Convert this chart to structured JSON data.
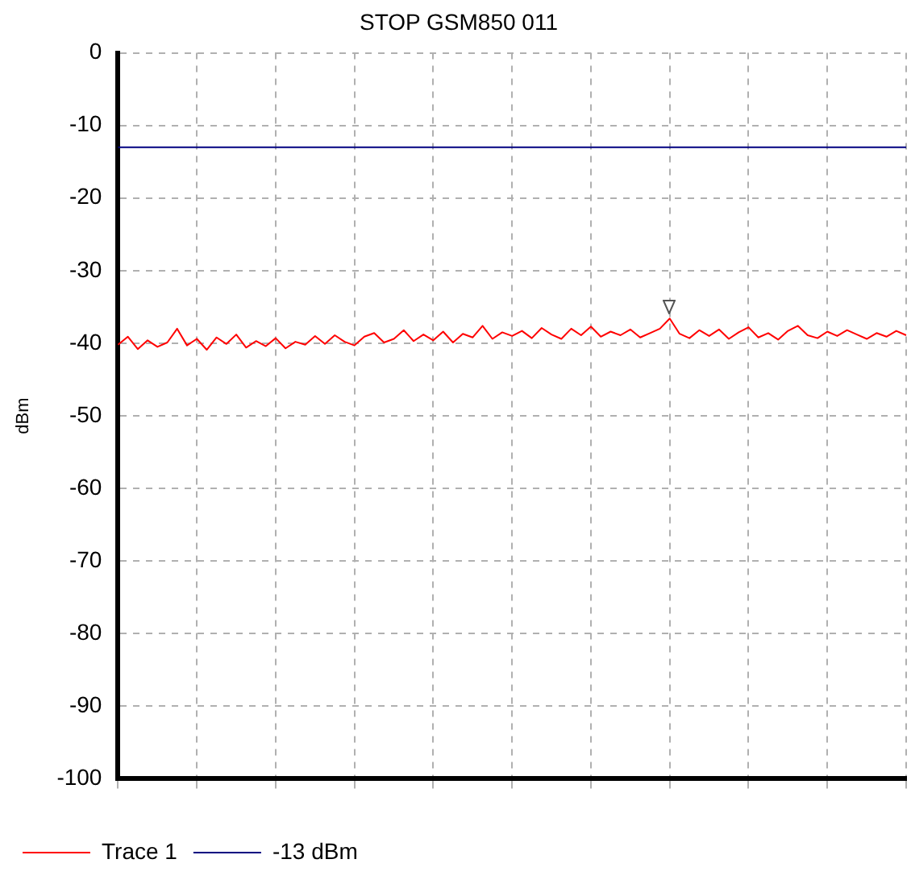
{
  "chart_data": {
    "type": "line",
    "title": "STOP GSM850 011",
    "ylabel": "dBm",
    "categories": [
      null,
      null,
      null,
      null,
      null,
      null,
      null,
      null,
      null,
      null,
      null,
      null,
      null,
      null,
      null,
      null,
      null,
      null,
      null,
      null,
      null,
      null,
      null,
      null,
      null,
      null,
      null,
      null,
      null,
      null,
      null,
      null,
      null,
      null,
      null,
      null,
      null,
      null,
      null,
      null,
      null,
      null,
      null,
      null,
      null,
      null,
      null,
      null,
      null,
      null,
      null,
      null,
      null,
      null,
      null,
      null,
      null,
      null,
      null,
      null,
      null,
      null,
      null,
      null,
      null,
      null,
      null,
      null,
      null,
      null,
      null,
      null,
      null,
      null,
      null,
      null,
      null,
      null,
      null,
      null,
      null
    ],
    "series": [
      {
        "name": "Trace 1",
        "color": "#ff0000",
        "values": [
          -40.2,
          -39.1,
          -40.8,
          -39.6,
          -40.5,
          -39.9,
          -38.0,
          -40.3,
          -39.4,
          -40.9,
          -39.2,
          -40.1,
          -38.8,
          -40.6,
          -39.7,
          -40.4,
          -39.3,
          -40.7,
          -39.8,
          -40.2,
          -39.0,
          -40.1,
          -38.9,
          -39.8,
          -40.3,
          -39.1,
          -38.6,
          -39.9,
          -39.4,
          -38.2,
          -39.7,
          -38.8,
          -39.6,
          -38.4,
          -39.9,
          -38.7,
          -39.2,
          -37.6,
          -39.4,
          -38.5,
          -39.0,
          -38.3,
          -39.3,
          -37.9,
          -38.8,
          -39.4,
          -38.0,
          -38.9,
          -37.7,
          -39.1,
          -38.4,
          -38.9,
          -38.1,
          -39.2,
          -38.6,
          -38.0,
          -36.6,
          -38.7,
          -39.3,
          -38.2,
          -39.0,
          -38.1,
          -39.4,
          -38.5,
          -37.8,
          -39.2,
          -38.6,
          -39.5,
          -38.3,
          -37.6,
          -38.9,
          -39.3,
          -38.4,
          -39.0,
          -38.2,
          -38.8,
          -39.4,
          -38.6,
          -39.1,
          -38.3,
          -38.9
        ]
      },
      {
        "name": "-13 dBm",
        "color": "#000080",
        "values": [
          -13,
          -13,
          -13,
          -13,
          -13,
          -13,
          -13,
          -13,
          -13,
          -13,
          -13,
          -13,
          -13,
          -13,
          -13,
          -13,
          -13,
          -13,
          -13,
          -13,
          -13,
          -13,
          -13,
          -13,
          -13,
          -13,
          -13,
          -13,
          -13,
          -13,
          -13,
          -13,
          -13,
          -13,
          -13,
          -13,
          -13,
          -13,
          -13,
          -13,
          -13,
          -13,
          -13,
          -13,
          -13,
          -13,
          -13,
          -13,
          -13,
          -13,
          -13,
          -13,
          -13,
          -13,
          -13,
          -13,
          -13,
          -13,
          -13,
          -13,
          -13,
          -13,
          -13,
          -13,
          -13,
          -13,
          -13,
          -13,
          -13,
          -13,
          -13,
          -13,
          -13,
          -13,
          -13,
          -13,
          -13,
          -13,
          -13,
          -13,
          -13
        ]
      }
    ],
    "ylim": [
      -100,
      0
    ],
    "yticks": [
      -100,
      -90,
      -80,
      -70,
      -60,
      -50,
      -40,
      -30,
      -20,
      -10,
      0
    ],
    "grid": true,
    "legend": "bottom left",
    "marker": "none",
    "line_style": "solid"
  }
}
